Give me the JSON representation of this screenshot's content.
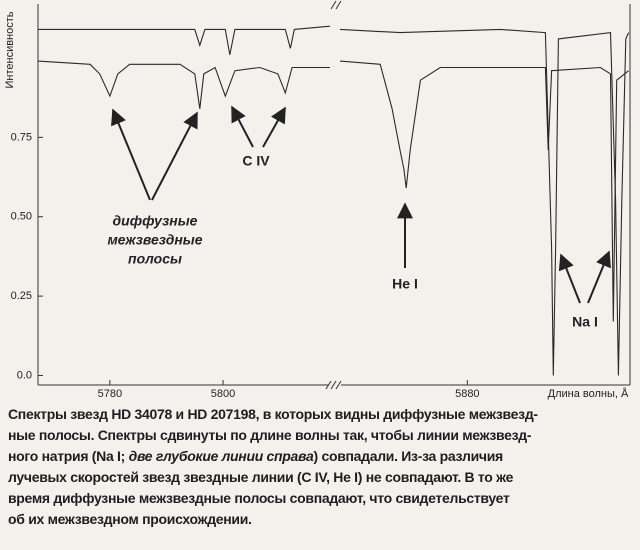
{
  "chart_data": {
    "type": "line",
    "ylabel": "Интенсивность",
    "xlabel": "Длина волны, Å",
    "xlim": [
      5767.3,
      5908.5
    ],
    "x_break": [
      5818.9,
      5857.5
    ],
    "xticks": [
      5780,
      5800,
      5880
    ],
    "ylim": [
      -0.03,
      1.17
    ],
    "yticks": [
      {
        "value": 0,
        "label": "0.0"
      },
      0.25,
      {
        "value": 0.5,
        "label": "0.50"
      },
      0.75
    ],
    "series": [
      {
        "color": "#2a2a2a",
        "x": [
          5767.3,
          5776.5,
          5778.2,
          5780,
          5781.4,
          5783.5,
          5792.4,
          5795.0,
          5795.9,
          5796.6,
          5798.6,
          5800.4,
          5802.1,
          5806.5,
          5809.7,
          5811.0,
          5812.2,
          5818.9,
          null,
          5857.5,
          5864.6,
          5866.7,
          5868.1,
          5868.8,
          5869.2,
          5869.9,
          5871.7,
          5875.2,
          5889.4,
          5893.8,
          5894.3,
          5894.9,
          5903.5,
          5905.3,
          5905.8,
          5906.4,
          5908.5
        ],
        "values": [
          0.99,
          0.98,
          0.95,
          0.88,
          0.95,
          0.98,
          0.98,
          0.95,
          0.84,
          0.95,
          0.97,
          0.88,
          0.96,
          0.97,
          0.95,
          0.89,
          0.97,
          0.97,
          null,
          0.99,
          0.98,
          0.84,
          0.71,
          0.65,
          0.59,
          0.71,
          0.93,
          0.97,
          0.97,
          0.97,
          0.71,
          0.96,
          0.97,
          0.95,
          0.17,
          0.93,
          0.96
        ]
      },
      {
        "color": "#2a2a2a",
        "x": [
          5767.3,
          5778.2,
          5795.0,
          5795.9,
          5796.8,
          5800.4,
          5801.2,
          5802.1,
          5811.0,
          5811.9,
          5812.6,
          5818.9,
          null,
          5857.5,
          5868.1,
          5885.8,
          5893.8,
          5894.9,
          5895.2,
          5895.6,
          5896.1,
          5905.3,
          5906.2,
          5906.7,
          5907.3,
          5908.0,
          5908.5
        ],
        "values": [
          1.09,
          1.09,
          1.09,
          1.04,
          1.09,
          1.09,
          1.01,
          1.09,
          1.09,
          1.03,
          1.09,
          1.1,
          null,
          1.09,
          1.08,
          1.09,
          1.08,
          0.4,
          0.0,
          0.4,
          1.06,
          1.08,
          0.55,
          0.0,
          0.55,
          1.06,
          1.08
        ]
      }
    ],
    "annotations": {
      "bands": [
        "диффузные",
        "межзвездные",
        "полосы"
      ],
      "civ": "C IV",
      "hei": "He I",
      "nai": "Na I"
    }
  },
  "caption": [
    [
      "Спектры звезд HD 34078 и HD 207198, в которых видны диффузные межзвезд-"
    ],
    [
      "ные полосы. Спектры сдвинуты по длине волны так, чтобы линии межзвезд-"
    ],
    [
      "ного натрия (Na I; ",
      "две глубокие линии справа",
      ") совпадали. Из-за различия"
    ],
    [
      "лучевых скоростей звезд звездные линии (C IV, He I) не совпадают. В то же"
    ],
    [
      "время диффузные межзвездные полосы совпадают, что свидетельствует"
    ],
    [
      "об их межзвездном происхождении."
    ]
  ]
}
